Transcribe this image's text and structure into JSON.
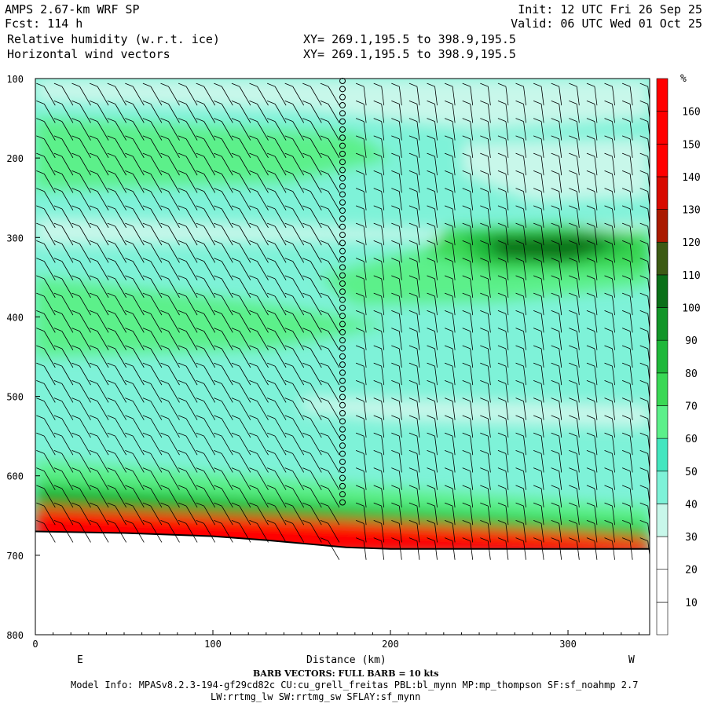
{
  "header": {
    "model": "AMPS 2.67-km WRF SP",
    "fcst": "Fcst: 114 h",
    "field1": "Relative humidity (w.r.t. ice)",
    "field2": "Horizontal wind vectors",
    "xy1": "XY= 269.1,195.5 to 398.9,195.5",
    "xy2": "XY= 269.1,195.5 to 398.9,195.5",
    "init": "Init: 12 UTC Fri 26 Sep 25",
    "valid": "Valid: 06 UTC Wed 01 Oct 25"
  },
  "footer": {
    "barb_note": "BARB VECTORS: FULL BARB = 10 kts",
    "model_info": "Model Info: MPASv8.2.3-194-gf29cd82c CU:cu_grell_freitas PBL:bl_mynn MP:mp_thompson SF:sf_noahmp 2.7",
    "model_info2": "LW:rrtmg_lw SW:rrtmg_sw SFLAY:sf_mynn"
  },
  "colors": {
    "bins": [
      "#ffffff",
      "#ffffff",
      "#ffffff",
      "#c8f7ea",
      "#7ef2d8",
      "#44e6bf",
      "#5cf08a",
      "#3ad855",
      "#1fb83a",
      "#129528",
      "#0a6f18",
      "#3c5a14",
      "#aa1a00",
      "#d80a00",
      "#ff0000",
      "#ff0000",
      "#ff0000"
    ],
    "terrain": "#ff0000",
    "core": "#0a6f18"
  },
  "chart_data": {
    "type": "heatmap",
    "title": "Relative humidity (w.r.t. ice)",
    "xlabel": "Distance (km)",
    "ylabel": "",
    "x_range": [
      0,
      346
    ],
    "y_range": [
      100,
      800
    ],
    "y_inverted": true,
    "x_ticks": [
      "0",
      "100",
      "200",
      "300"
    ],
    "y_ticks": [
      "100",
      "200",
      "300",
      "400",
      "500",
      "600",
      "700",
      "800"
    ],
    "x_end_labels": {
      "left": "E",
      "right": "W"
    },
    "colorbar_unit": "%",
    "colorbar_levels": [
      10,
      20,
      30,
      40,
      50,
      60,
      70,
      80,
      90,
      100,
      110,
      120,
      130,
      140,
      150,
      160
    ],
    "terrain_surface": {
      "x": [
        0,
        50,
        100,
        130,
        150,
        175,
        200,
        250,
        300,
        346
      ],
      "y": [
        670,
        672,
        676,
        681,
        685,
        690,
        692,
        692,
        692,
        692
      ]
    },
    "legend": "Horizontal wind vectors"
  }
}
